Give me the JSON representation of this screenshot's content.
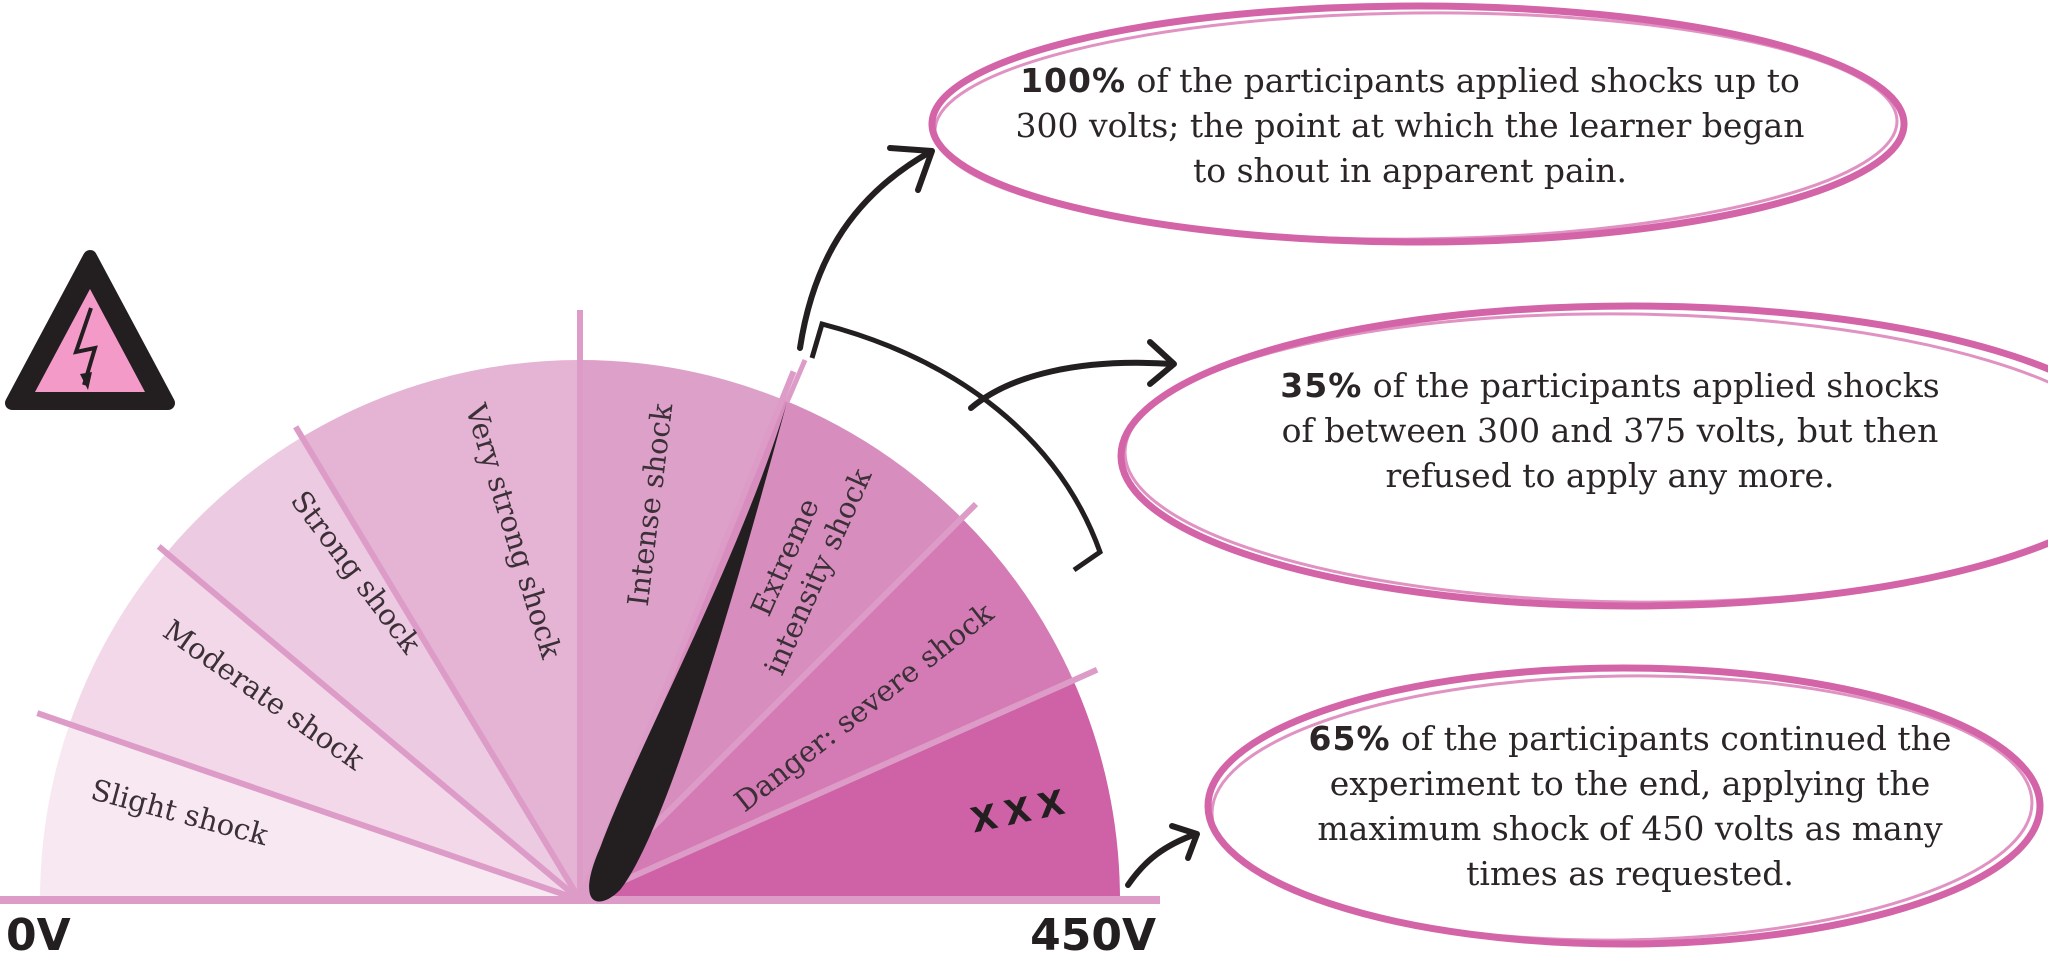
{
  "colors": {
    "ring": "#d364a8",
    "needle": "#231f20",
    "divider": "#dd9cc8",
    "segments": [
      "#f8e8f1",
      "#f2d8e9",
      "#eccbe2",
      "#e5b3d4",
      "#dda0c9",
      "#d88dbf",
      "#d47ab5",
      "#cf62a7"
    ]
  },
  "gauge": {
    "segments": [
      {
        "label": "Slight shock"
      },
      {
        "label": "Moderate shock"
      },
      {
        "label": "Strong shock"
      },
      {
        "label": "Very strong shock"
      },
      {
        "label": "Intense shock"
      },
      {
        "label": "Extreme intensity shock"
      },
      {
        "label": "Danger: severe shock"
      },
      {
        "label": "XXX"
      }
    ],
    "min_label": "0V",
    "max_label": "450V",
    "icon": "high-voltage-warning-icon"
  },
  "notes": [
    {
      "pct": "100%",
      "text": "of the participants applied shocks up to 300 volts; the point at which the learner began to shout in apparent pain."
    },
    {
      "pct": "35%",
      "text": "of the participants applied shocks of between 300 and 375 volts, but then refused to apply any more."
    },
    {
      "pct": "65%",
      "text": "of the participants continued the experiment to the end, applying the maximum shock of 450 volts as many times as requested."
    }
  ]
}
